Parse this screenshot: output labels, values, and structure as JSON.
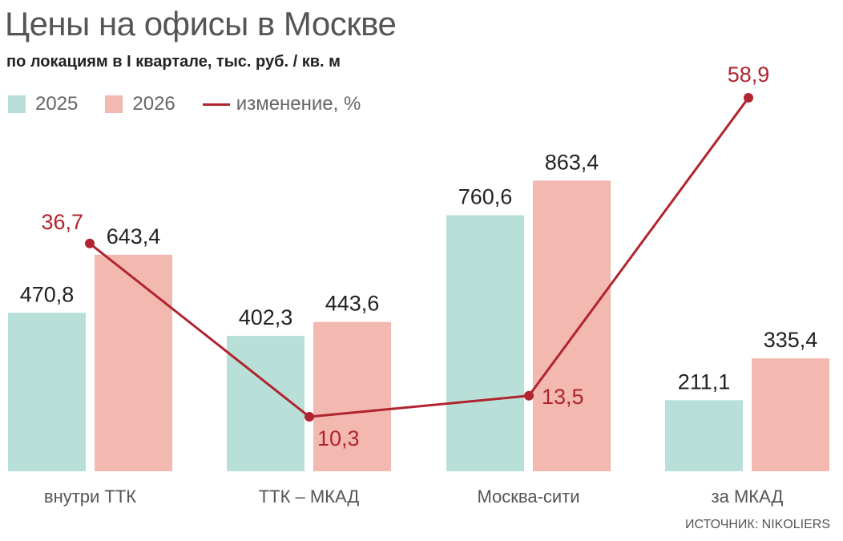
{
  "header": {
    "title": "Цены на офисы в Москве",
    "subtitle": "по локациям в I квартале, тыс. руб. / кв. м"
  },
  "legend": {
    "item_2025": "2025",
    "item_2026": "2026",
    "item_change": "изменение, %"
  },
  "footer": {
    "source": "ИСТОЧНИК: NIKOLIERS"
  },
  "colors": {
    "bar_2025": "#b9e0d8",
    "bar_2026": "#f3b8b0",
    "change_line": "#b0242f",
    "value_label": "#222222"
  },
  "chart_data": {
    "type": "bar",
    "categories": [
      "внутри ТТК",
      "ТТК – МКАД",
      "Москва-сити",
      "за МКАД"
    ],
    "series": [
      {
        "name": "2025",
        "values": [
          470.8,
          402.3,
          760.6,
          211.1
        ],
        "labels": [
          "470,8",
          "402,3",
          "760,6",
          "211,1"
        ]
      },
      {
        "name": "2026",
        "values": [
          643.4,
          443.6,
          863.4,
          335.4
        ],
        "labels": [
          "643,4",
          "443,6",
          "863,4",
          "335,4"
        ]
      }
    ],
    "overlay_line": {
      "name": "изменение, %",
      "values": [
        36.7,
        10.3,
        13.5,
        58.9
      ],
      "labels": [
        "36,7",
        "10,3",
        "13,5",
        "58,9"
      ]
    },
    "ylim": [
      0,
      1000
    ],
    "grid": false,
    "legend_position": "top-left"
  }
}
